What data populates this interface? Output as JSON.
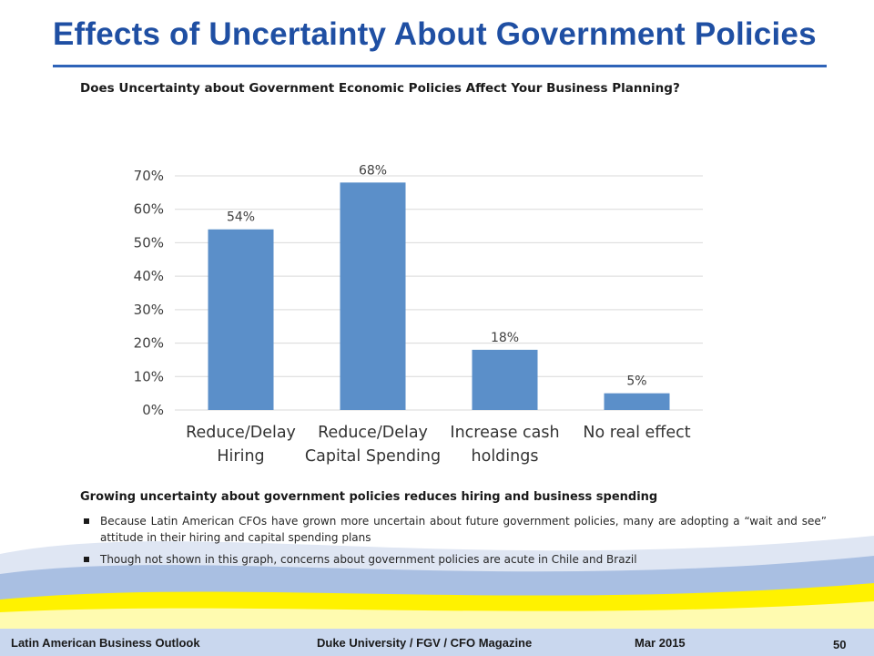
{
  "slide": {
    "title": "Effects of Uncertainty About Government Policies",
    "question": "Does Uncertainty about Government Economic Policies Affect Your Business Planning?"
  },
  "chart_data": {
    "type": "bar",
    "categories": [
      [
        "Reduce/Delay",
        "Hiring"
      ],
      [
        "Reduce/Delay",
        "Capital Spending"
      ],
      [
        "Increase cash",
        "holdings"
      ],
      [
        "No real effect"
      ]
    ],
    "values": [
      54,
      68,
      18,
      5
    ],
    "data_labels": [
      "54%",
      "68%",
      "18%",
      "5%"
    ],
    "ylim": [
      0,
      70
    ],
    "yticks": [
      "0%",
      "10%",
      "20%",
      "30%",
      "40%",
      "50%",
      "60%",
      "70%"
    ],
    "grid": true,
    "bar_color": "#5b8fc9",
    "grid_color": "#d9d9d9",
    "title": "",
    "xlabel": "",
    "ylabel": ""
  },
  "summary": {
    "heading": "Growing uncertainty about government policies reduces hiring and business spending",
    "bullets": [
      "Because Latin American CFOs have grown more uncertain about future government policies, many are adopting a “wait and see” attitude in their hiring and capital spending plans",
      "Though not shown in this graph, concerns about government policies are acute in Chile and Brazil"
    ]
  },
  "footer": {
    "left": "Latin American Business Outlook",
    "center": "Duke University / FGV / CFO Magazine",
    "date": "Mar 2015",
    "page": "50"
  },
  "colors": {
    "title": "#1f4fa3",
    "wave_blue": "#9fb6dc",
    "wave_light": "#dfe6f3",
    "wave_yellow": "#fff200"
  }
}
